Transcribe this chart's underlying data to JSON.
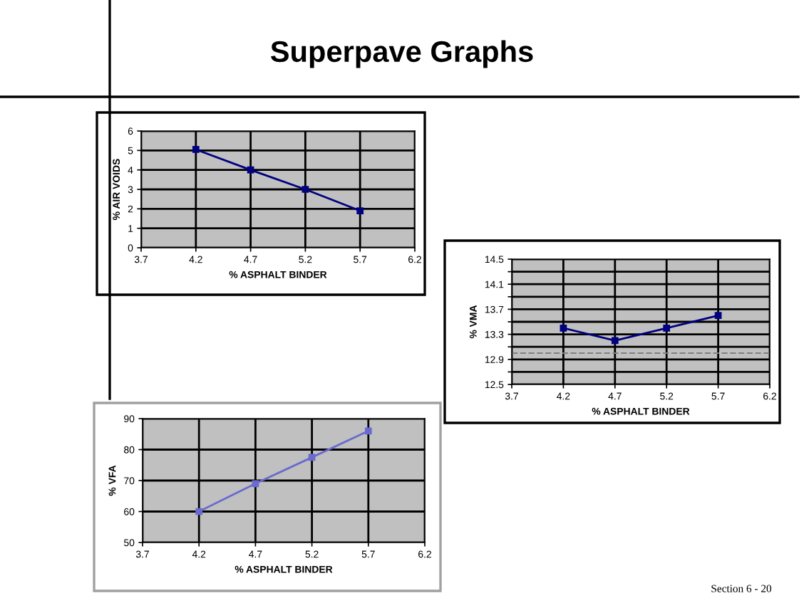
{
  "chart_data": [
    {
      "type": "line",
      "title": "Superpave Graphs",
      "x": [
        4.2,
        4.7,
        5.2,
        5.7
      ],
      "series": [
        {
          "color": "#000080",
          "values": [
            5.05,
            4.0,
            3.0,
            1.9
          ]
        }
      ],
      "xlim": [
        3.7,
        6.2
      ],
      "xticks": [
        3.7,
        4.2,
        4.7,
        5.2,
        5.7,
        6.2
      ],
      "ylim": [
        0,
        6
      ],
      "yticks": [
        0,
        1,
        2,
        3,
        4,
        5,
        6
      ],
      "xlabel": "% ASPHALT BINDER",
      "ylabel": "% AIR VOIDS",
      "grid": true,
      "marker": "square",
      "line_style": "solid"
    },
    {
      "type": "line",
      "x": [
        4.2,
        4.7,
        5.2,
        5.7
      ],
      "series": [
        {
          "color": "#000080",
          "values": [
            13.4,
            13.2,
            13.4,
            13.6
          ]
        }
      ],
      "xlim": [
        3.7,
        6.2
      ],
      "xticks": [
        3.7,
        4.2,
        4.7,
        5.2,
        5.7,
        6.2
      ],
      "ylim": [
        12.5,
        14.5
      ],
      "yticks": [
        12.5,
        {
          "value": 12.7,
          "label": null
        },
        12.9,
        {
          "value": 13.1,
          "label": null
        },
        13.3,
        {
          "value": 13.5,
          "label": null
        },
        13.7,
        {
          "value": 13.9,
          "label": null
        },
        14.1,
        {
          "value": 14.3,
          "label": null
        },
        14.5
      ],
      "ref_lines": [
        {
          "axis": "y",
          "value": 13.0,
          "color": "#808080",
          "line_style": "dashed"
        }
      ],
      "xlabel": "% ASPHALT BINDER",
      "ylabel": "% VMA",
      "grid": true,
      "marker": "square",
      "line_style": "solid"
    },
    {
      "type": "line",
      "x": [
        4.2,
        4.7,
        5.2,
        5.7
      ],
      "series": [
        {
          "color": "#6a6ad0",
          "values": [
            60,
            69,
            77.5,
            86
          ]
        }
      ],
      "xlim": [
        3.7,
        6.2
      ],
      "xticks": [
        3.7,
        4.2,
        4.7,
        5.2,
        5.7,
        6.2
      ],
      "ylim": [
        50,
        90
      ],
      "yticks": [
        50,
        60,
        70,
        80,
        90
      ],
      "xlabel": "% ASPHALT BINDER",
      "ylabel": "% VFA",
      "grid": true,
      "marker": "square",
      "line_style": "solid",
      "annotations": [
        "Section 6 - 20"
      ]
    }
  ]
}
